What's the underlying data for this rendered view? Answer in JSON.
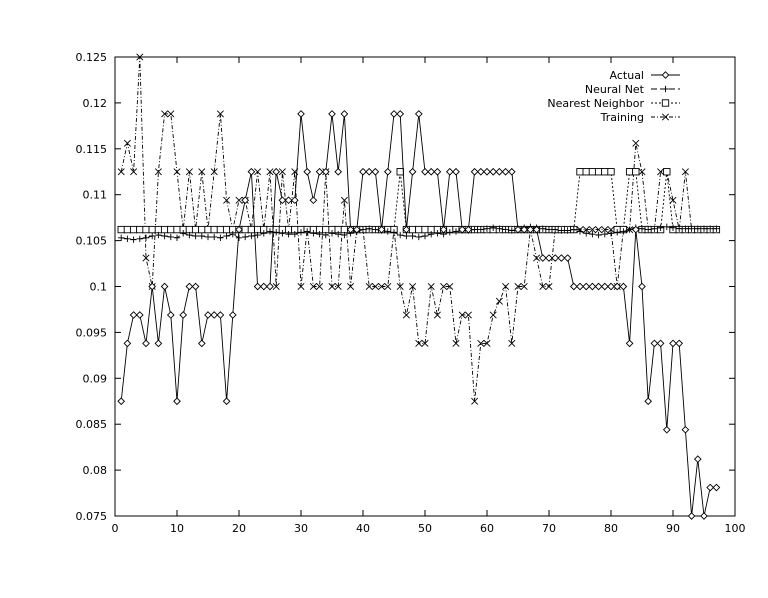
{
  "chart_data": {
    "type": "line",
    "title": "",
    "xlabel": "",
    "ylabel": "",
    "xlim": [
      0,
      100
    ],
    "ylim": [
      0.075,
      0.125
    ],
    "xticks": [
      0,
      10,
      20,
      30,
      40,
      50,
      60,
      70,
      80,
      90,
      100
    ],
    "yticks": [
      0.075,
      0.08,
      0.085,
      0.09,
      0.095,
      0.1,
      0.105,
      0.11,
      0.115,
      0.12,
      0.125
    ],
    "xtick_labels": [
      "0",
      "10",
      "20",
      "30",
      "40",
      "50",
      "60",
      "70",
      "80",
      "90",
      "100"
    ],
    "ytick_labels": [
      "0.075",
      "0.08",
      "0.085",
      "0.09",
      "0.095",
      "0.1",
      "0.105",
      "0.11",
      "0.115",
      "0.12",
      "0.125"
    ],
    "grid": false,
    "legend_position": "top-right",
    "series": [
      {
        "name": "Actual",
        "marker": "diamond",
        "dash": "none",
        "x": [
          1,
          2,
          3,
          4,
          5,
          6,
          7,
          8,
          9,
          10,
          11,
          12,
          13,
          14,
          15,
          16,
          17,
          18,
          19,
          20,
          21,
          22,
          23,
          24,
          25,
          26,
          27,
          28,
          29,
          30,
          31,
          32,
          33,
          34,
          35,
          36,
          37,
          38,
          39,
          40,
          41,
          42,
          43,
          44,
          45,
          46,
          47,
          48,
          49,
          50,
          51,
          52,
          53,
          54,
          55,
          56,
          57,
          58,
          59,
          60,
          61,
          62,
          63,
          64,
          65,
          66,
          67,
          68,
          69,
          70,
          71,
          72,
          73,
          74,
          75,
          76,
          77,
          78,
          79,
          80,
          81,
          82,
          83,
          84,
          85,
          86,
          87,
          88,
          89,
          90,
          91,
          92,
          93,
          94,
          95,
          96,
          97
        ],
        "y": [
          0.0875,
          0.0938,
          0.0969,
          0.0969,
          0.0938,
          0.1,
          0.0938,
          0.1,
          0.0969,
          0.0875,
          0.0969,
          0.1,
          0.1,
          0.0938,
          0.0969,
          0.0969,
          0.0969,
          0.0875,
          0.0969,
          0.1062,
          0.1094,
          0.1125,
          0.1,
          0.1,
          0.1,
          0.1125,
          0.1094,
          0.1094,
          0.1094,
          0.1188,
          0.1125,
          0.1094,
          0.1125,
          0.1125,
          0.1188,
          0.1125,
          0.1188,
          0.1062,
          0.1062,
          0.1125,
          0.1125,
          0.1125,
          0.1062,
          0.1125,
          0.1188,
          0.1188,
          0.1062,
          0.1125,
          0.1188,
          0.1125,
          0.1125,
          0.1125,
          0.1062,
          0.1125,
          0.1125,
          0.1062,
          0.1062,
          0.1125,
          0.1125,
          0.1125,
          0.1125,
          0.1125,
          0.1125,
          0.1125,
          0.1062,
          0.1062,
          0.1062,
          0.1062,
          0.1031,
          0.1031,
          0.1031,
          0.1031,
          0.1031,
          0.1,
          0.1,
          0.1,
          0.1,
          0.1,
          0.1,
          0.1,
          0.1,
          0.1,
          0.0938,
          0.1062,
          0.1,
          0.0875,
          0.0938,
          0.0938,
          0.0844,
          0.0938,
          0.0938,
          0.0844,
          0.075,
          0.0812,
          0.075,
          0.0781,
          0.0781
        ]
      },
      {
        "name": "Neural Net",
        "marker": "plus",
        "dash": "6,3",
        "x": [
          1,
          2,
          3,
          4,
          5,
          6,
          7,
          8,
          9,
          10,
          11,
          12,
          13,
          14,
          15,
          16,
          17,
          18,
          19,
          20,
          21,
          22,
          23,
          24,
          25,
          26,
          27,
          28,
          29,
          30,
          31,
          32,
          33,
          34,
          35,
          36,
          37,
          38,
          39,
          40,
          41,
          42,
          43,
          44,
          45,
          46,
          47,
          48,
          49,
          50,
          51,
          52,
          53,
          54,
          55,
          56,
          57,
          58,
          59,
          60,
          61,
          62,
          63,
          64,
          65,
          66,
          67,
          68,
          69,
          70,
          71,
          72,
          73,
          74,
          75,
          76,
          77,
          78,
          79,
          80,
          81,
          82,
          83,
          84,
          85,
          86,
          87,
          88,
          89,
          90,
          91,
          92,
          93,
          94,
          95,
          96,
          97
        ],
        "y": [
          0.1053,
          0.1052,
          0.1051,
          0.1052,
          0.1053,
          0.1055,
          0.1056,
          0.1055,
          0.1054,
          0.1053,
          0.1058,
          0.1056,
          0.1055,
          0.1055,
          0.1054,
          0.1054,
          0.1053,
          0.1055,
          0.1057,
          0.1053,
          0.1054,
          0.1055,
          0.1056,
          0.1058,
          0.106,
          0.1059,
          0.1058,
          0.1057,
          0.1057,
          0.1059,
          0.106,
          0.1058,
          0.1057,
          0.1056,
          0.1058,
          0.1057,
          0.1056,
          0.1058,
          0.106,
          0.1062,
          0.1063,
          0.1062,
          0.1061,
          0.106,
          0.1059,
          0.1056,
          0.1055,
          0.1055,
          0.1054,
          0.1055,
          0.1057,
          0.1058,
          0.1057,
          0.1059,
          0.106,
          0.1061,
          0.1061,
          0.1062,
          0.1062,
          0.1063,
          0.1064,
          0.1063,
          0.1062,
          0.1061,
          0.1063,
          0.1064,
          0.1065,
          0.1064,
          0.1063,
          0.1062,
          0.1062,
          0.1061,
          0.1061,
          0.1062,
          0.106,
          0.1058,
          0.1057,
          0.1056,
          0.1057,
          0.1058,
          0.1059,
          0.106,
          0.1062,
          0.1064,
          0.1063,
          0.1062,
          0.1063,
          0.1064,
          0.1065,
          0.1064,
          0.1063,
          0.1063,
          0.1063,
          0.1063,
          0.1063,
          0.1063,
          0.1063
        ]
      },
      {
        "name": "Nearest Neighbor",
        "marker": "square",
        "dash": "2,2",
        "x": [
          1,
          2,
          3,
          4,
          5,
          6,
          7,
          8,
          9,
          10,
          11,
          12,
          13,
          14,
          15,
          16,
          17,
          18,
          19,
          20,
          21,
          22,
          23,
          24,
          25,
          26,
          27,
          28,
          29,
          30,
          31,
          32,
          33,
          34,
          35,
          36,
          37,
          38,
          39,
          40,
          41,
          42,
          43,
          44,
          45,
          46,
          47,
          48,
          49,
          50,
          51,
          52,
          53,
          54,
          55,
          56,
          57,
          58,
          59,
          60,
          61,
          62,
          63,
          64,
          65,
          66,
          67,
          68,
          69,
          70,
          71,
          72,
          73,
          74,
          75,
          76,
          77,
          78,
          79,
          80,
          81,
          82,
          83,
          84,
          85,
          86,
          87,
          88,
          89,
          90,
          91,
          92,
          93,
          94,
          95,
          96,
          97
        ],
        "y": [
          0.1062,
          0.1062,
          0.1062,
          0.1062,
          0.1062,
          0.1062,
          0.1062,
          0.1062,
          0.1062,
          0.1062,
          0.1062,
          0.1062,
          0.1062,
          0.1062,
          0.1062,
          0.1062,
          0.1062,
          0.1062,
          0.1062,
          0.1062,
          0.1062,
          0.1062,
          0.1062,
          0.1062,
          0.1062,
          0.1062,
          0.1062,
          0.1062,
          0.1062,
          0.1062,
          0.1062,
          0.1062,
          0.1062,
          0.1062,
          0.1062,
          0.1062,
          0.1062,
          0.1062,
          0.1062,
          0.1062,
          0.1062,
          0.1062,
          0.1062,
          0.1062,
          0.1062,
          0.1125,
          0.1062,
          0.1062,
          0.1062,
          0.1062,
          0.1062,
          0.1062,
          0.1062,
          0.1062,
          0.1062,
          0.1062,
          0.1062,
          0.1062,
          0.1062,
          0.1062,
          0.1062,
          0.1062,
          0.1062,
          0.1062,
          0.1062,
          0.1062,
          0.1062,
          0.1062,
          0.1062,
          0.1062,
          0.1062,
          0.1062,
          0.1062,
          0.1062,
          0.1125,
          0.1125,
          0.1125,
          0.1125,
          0.1125,
          0.1125,
          0.1062,
          0.1062,
          0.1125,
          0.1125,
          0.1062,
          0.1062,
          0.1062,
          0.1062,
          0.1125,
          0.1062,
          0.1062,
          0.1062,
          0.1062,
          0.1062,
          0.1062,
          0.1062,
          0.1062
        ]
      },
      {
        "name": "Training",
        "marker": "cross",
        "dash": "4,2,1,2",
        "x": [
          1,
          2,
          3,
          4,
          5,
          6,
          7,
          8,
          9,
          10,
          11,
          12,
          13,
          14,
          15,
          16,
          17,
          18,
          19,
          20,
          21,
          22,
          23,
          24,
          25,
          26,
          27,
          28,
          29,
          30,
          31,
          32,
          33,
          34,
          35,
          36,
          37,
          38,
          39,
          40,
          41,
          42,
          43,
          44,
          45,
          46,
          47,
          48,
          49,
          50,
          51,
          52,
          53,
          54,
          55,
          56,
          57,
          58,
          59,
          60,
          61,
          62,
          63,
          64,
          65,
          66,
          67,
          68,
          69,
          70,
          71,
          72,
          73,
          74,
          75,
          76,
          77,
          78,
          79,
          80,
          81,
          82,
          83,
          84,
          85,
          86,
          87,
          88,
          89,
          90,
          91,
          92,
          93,
          94,
          95,
          96,
          97
        ],
        "y": [
          0.1125,
          0.1156,
          0.1125,
          0.125,
          0.1031,
          0.1,
          0.1125,
          0.1188,
          0.1188,
          0.1125,
          0.1062,
          0.1125,
          0.1062,
          0.1125,
          0.1062,
          0.1125,
          0.1188,
          0.1094,
          0.1062,
          0.1094,
          0.1094,
          0.1062,
          0.1125,
          0.1062,
          0.1125,
          0.1,
          0.1125,
          0.1062,
          0.1125,
          0.1,
          0.1062,
          0.1,
          0.1,
          0.1125,
          0.1,
          0.1,
          0.1094,
          0.1,
          0.1062,
          0.1062,
          0.1,
          0.1,
          0.1,
          0.1,
          0.1062,
          0.1,
          0.0969,
          0.1,
          0.0938,
          0.0938,
          0.1,
          0.0969,
          0.1,
          0.1,
          0.0938,
          0.0969,
          0.0969,
          0.0875,
          0.0938,
          0.0938,
          0.0969,
          0.0984,
          0.1,
          0.0938,
          0.1,
          0.1,
          0.1062,
          0.1031,
          0.1,
          0.1,
          0.1062,
          0.1062,
          0.1062,
          0.1062,
          0.1062,
          0.1062,
          0.1062,
          0.1062,
          0.1062,
          0.1062,
          0.1,
          0.1062,
          0.1062,
          0.1156,
          0.1125,
          0.1062,
          0.1062,
          0.1125,
          0.1125,
          0.1094,
          0.1062,
          0.1125,
          0.1062,
          0.1062,
          0.1062,
          0.1062,
          0.1062
        ]
      }
    ]
  }
}
